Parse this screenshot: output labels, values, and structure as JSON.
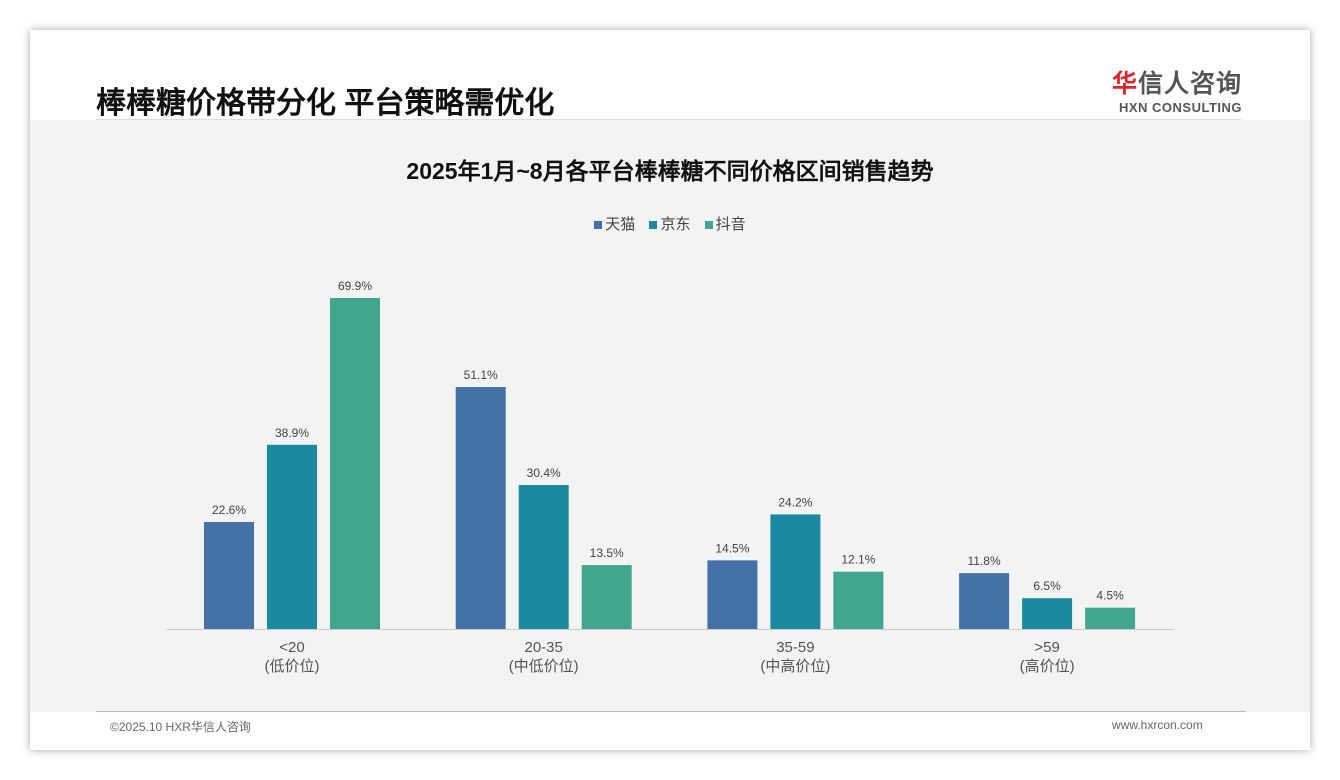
{
  "header": {
    "title": "棒棒糖价格带分化 平台策略需优化",
    "logo_cn_red": "华",
    "logo_cn": "信人咨询",
    "logo_en": "HXN CONSULTING"
  },
  "footer": {
    "copyright": "©2025.10 HXR华信人咨询",
    "website": "www.hxrcon.com"
  },
  "chart_data": {
    "type": "bar",
    "title": "2025年1月~8月各平台棒棒糖不同价格区间销售趋势",
    "categories": [
      "<20",
      "20-35",
      "35-59",
      ">59"
    ],
    "category_sublabels": [
      "(低价位)",
      "(中低价位)",
      "(中高价位)",
      "(高价位)"
    ],
    "series": [
      {
        "name": "天猫",
        "color": "#4472a8",
        "values": [
          22.6,
          51.1,
          14.5,
          11.8
        ]
      },
      {
        "name": "京东",
        "color": "#1a8aa0",
        "values": [
          38.9,
          30.4,
          24.2,
          6.5
        ]
      },
      {
        "name": "抖音",
        "color": "#42a68f",
        "values": [
          69.9,
          13.5,
          12.1,
          4.5
        ]
      }
    ],
    "unit": "%",
    "legend_position": "top-center",
    "ylim": [
      0,
      70
    ]
  }
}
